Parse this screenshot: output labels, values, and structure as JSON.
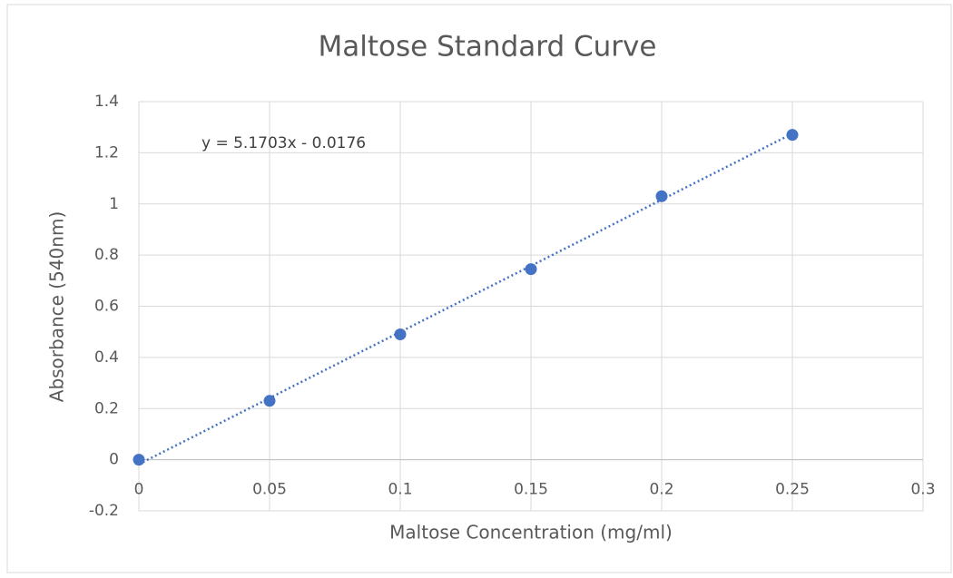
{
  "chart_data": {
    "type": "scatter",
    "title": "Maltose Standard Curve",
    "xlabel": "Maltose Concentration (mg/ml)",
    "ylabel": "Absorbance (540nm)",
    "series": [
      {
        "name": "Absorbance",
        "color": "#4472c4",
        "x": [
          0,
          0.05,
          0.1,
          0.15,
          0.2,
          0.25
        ],
        "values": [
          0,
          0.23,
          0.49,
          0.745,
          1.03,
          1.27
        ]
      }
    ],
    "trendline": {
      "label": "y = 5.1703x - 0.0176",
      "slope": 5.1703,
      "intercept": -0.0176,
      "style": "dotted"
    },
    "xlim": [
      0,
      0.3
    ],
    "xticks": [
      0,
      0.05,
      0.1,
      0.15,
      0.2,
      0.25,
      0.3
    ],
    "ylim": [
      -0.2,
      1.4
    ],
    "yticks": [
      -0.2,
      0,
      0.2,
      0.4,
      0.6,
      0.8,
      1,
      1.2,
      1.4
    ],
    "grid": true
  }
}
